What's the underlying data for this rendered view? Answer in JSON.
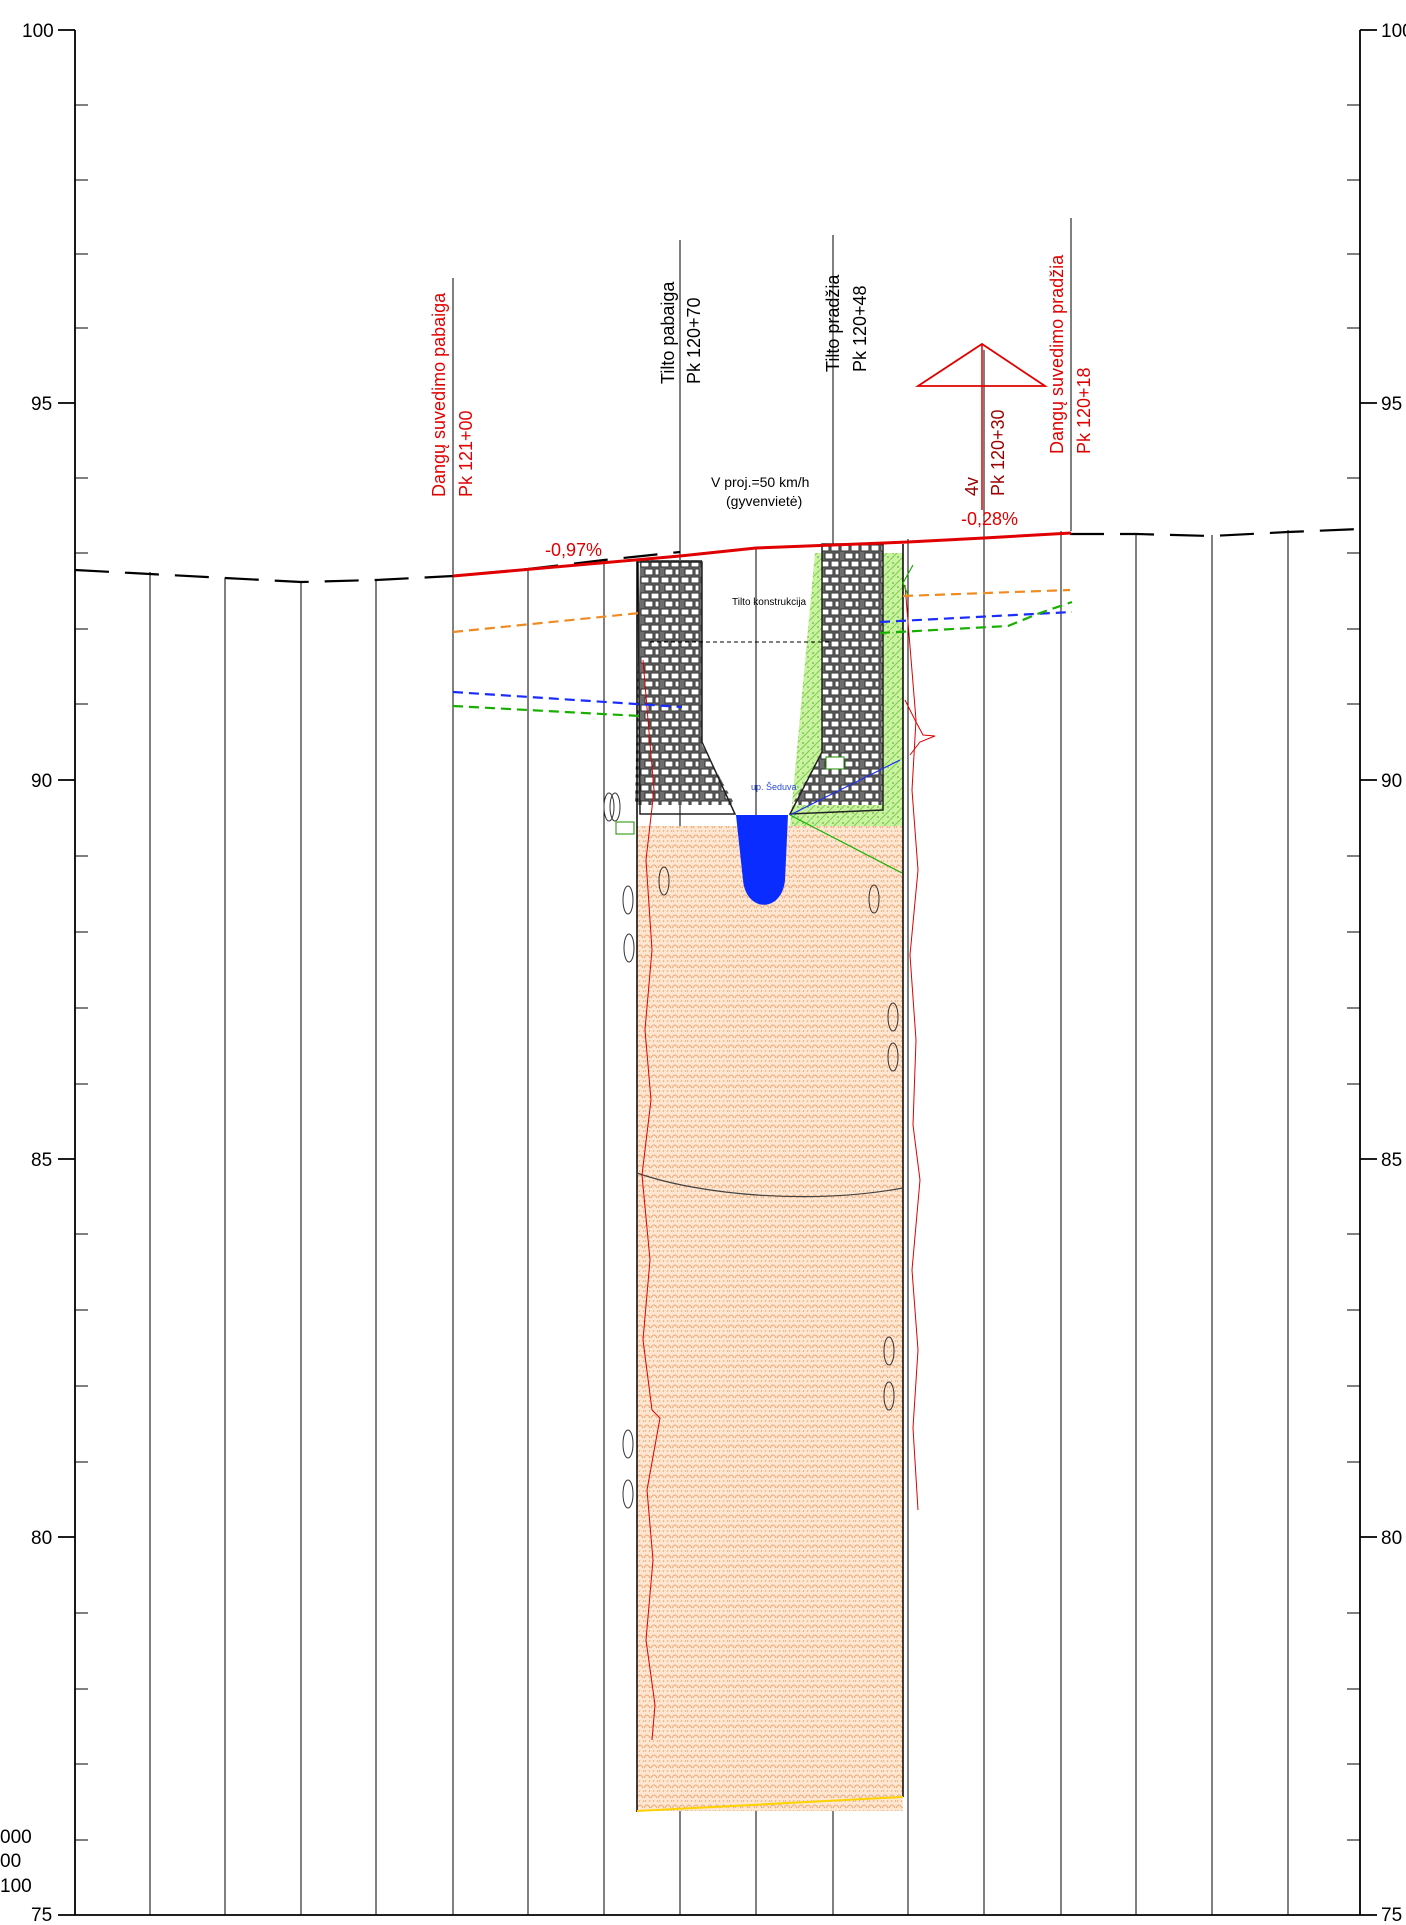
{
  "axis": {
    "left_ticks": [
      "100",
      "95",
      "90",
      "85",
      "80",
      "75"
    ],
    "right_ticks": [
      "100",
      "95",
      "90",
      "85",
      "80",
      "75"
    ]
  },
  "labels": {
    "transition_end": {
      "title": "Dangų suvedimo pabaiga",
      "station": "Pk 121+00"
    },
    "bridge_end": {
      "title": "Tilto pabaiga",
      "station": "Pk 120+70"
    },
    "bridge_start": {
      "title": "Tilto pradžia",
      "station": "Pk 120+48"
    },
    "vertical_curve": {
      "code": "4v",
      "station": "Pk 120+30"
    },
    "transition_start": {
      "title": "Dangų suvedimo pradžia",
      "station": "Pk 120+18"
    }
  },
  "design_note": {
    "speed": "V proj.=50 km/h",
    "settlement": "(gyvenvietė)"
  },
  "grades": {
    "left": "-0,97%",
    "right": "-0,28%"
  },
  "annotations": {
    "structure": "Tilto konstrukcija",
    "river": "up. Šeduva"
  },
  "legend_left": {
    "line1": "000",
    "line2": "00",
    "line3": "100"
  },
  "colors": {
    "design_line": "#e00000",
    "orange_dashed": "#f08b21",
    "blue_dashed": "#1b2cff",
    "green_dashed": "#18b000",
    "bridge_fill": "#7a7a7a",
    "sand_fill": "#f6c8a2",
    "green_fill": "#b8ea6f",
    "water": "#0a2cff"
  },
  "icons": {
    "vertical_curve_marker": "triangle-marker-icon"
  }
}
